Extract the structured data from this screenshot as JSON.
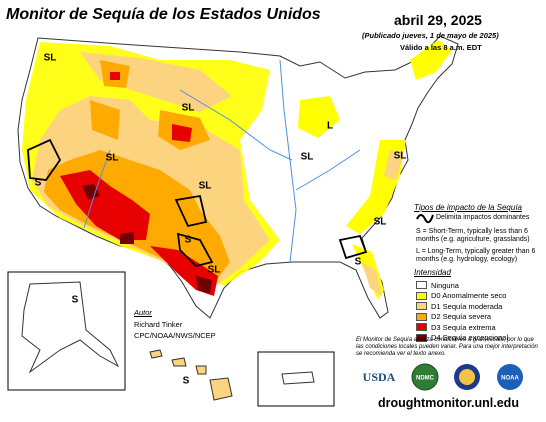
{
  "title": "Monitor de Sequía de los Estados Unidos",
  "date": "abril 29, 2025",
  "published": "(Publicado jueves, 1 de mayo de 2025)",
  "valid": "Válido a las 8 a.m. EDT",
  "impacts": {
    "title": "Tipos de impacto de la Sequía",
    "boundary": "Delimita impactos dominantes",
    "short_term": "S = Short-Term, typically less than 6 months (e.g. agriculture, grasslands)",
    "long_term": "L = Long-Term, typically greater than 6 months (e.g. hydrology, ecology)"
  },
  "intensity": {
    "title": "Intensidad",
    "categories": [
      {
        "label": "Ninguna",
        "color": "#ffffff"
      },
      {
        "label": "D0 Anomalmente seco",
        "color": "#ffff00"
      },
      {
        "label": "D1 Sequía moderada",
        "color": "#fcd37f"
      },
      {
        "label": "D2 Sequía severa",
        "color": "#ffaa00"
      },
      {
        "label": "D3 Sequía extrema",
        "color": "#e60000"
      },
      {
        "label": "D4 Sequía excepcional",
        "color": "#730000"
      }
    ]
  },
  "author": {
    "heading": "Autor",
    "name": "Richard Tinker",
    "agency": "CPC/NOAA/NWS/NCEP"
  },
  "note": "El Monitor de Sequía analiza condiciones a gran escala, por lo que las condiciones locales pueden variar. Para una mejor interpretación se recomienda ver el texto anexo.",
  "logos": [
    "USDA",
    "NDMC",
    "NOAA"
  ],
  "url": "droughtmonitor.unl.edu",
  "map_labels": [
    "SL",
    "SL",
    "SL",
    "SL",
    "SL",
    "SL",
    "L",
    "SL",
    "S",
    "S",
    "SL",
    "S",
    "S",
    "S"
  ]
}
